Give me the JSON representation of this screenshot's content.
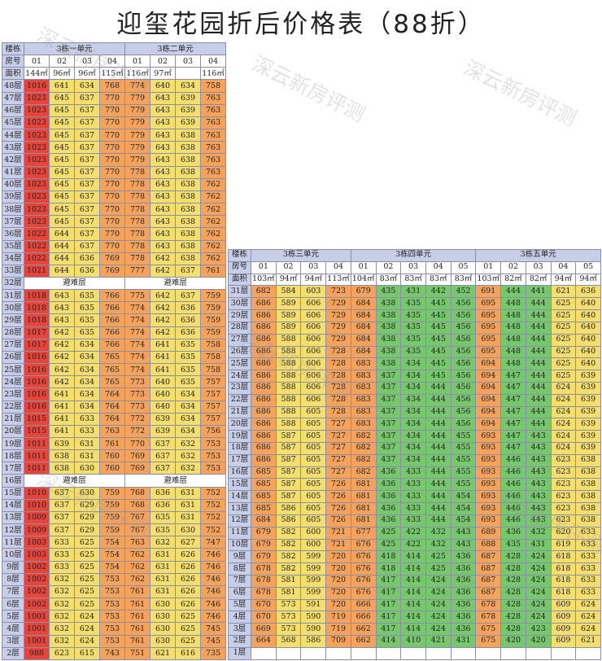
{
  "title": "迎玺花园折后价格表（88折）",
  "watermark": "深云新房评测",
  "colors": {
    "red": "#e9443a",
    "orange": "#f5a35c",
    "yellow": "#f4de6e",
    "green": "#77c86c",
    "label_bg": "#c8cee8"
  },
  "labels": {
    "building": "楼栋",
    "room": "房号",
    "area": "面积",
    "refuge": "避难层"
  },
  "left_table": {
    "units": [
      {
        "name": "3栋一单元",
        "rooms": [
          "01",
          "02",
          "03",
          "04"
        ],
        "areas": [
          "144㎡",
          "96㎡",
          "96㎡",
          "115㎡"
        ]
      },
      {
        "name": "3栋二单元",
        "rooms": [
          "01",
          "02",
          "03",
          "04"
        ],
        "areas": [
          "116㎡",
          "97㎡",
          "",
          "116㎡"
        ]
      }
    ],
    "rows": [
      {
        "floor": "48层",
        "v": [
          1016,
          641,
          634,
          768,
          774,
          640,
          634,
          758
        ]
      },
      {
        "floor": "47层",
        "v": [
          1023,
          645,
          637,
          770,
          779,
          643,
          639,
          763
        ]
      },
      {
        "floor": "46层",
        "v": [
          1023,
          645,
          637,
          770,
          779,
          643,
          639,
          763
        ]
      },
      {
        "floor": "45层",
        "v": [
          1023,
          645,
          637,
          770,
          779,
          643,
          639,
          763
        ]
      },
      {
        "floor": "44层",
        "v": [
          1023,
          645,
          637,
          770,
          779,
          643,
          638,
          763
        ]
      },
      {
        "floor": "43层",
        "v": [
          1023,
          645,
          637,
          770,
          779,
          643,
          638,
          763
        ]
      },
      {
        "floor": "42层",
        "v": [
          1023,
          645,
          637,
          770,
          779,
          643,
          638,
          763
        ]
      },
      {
        "floor": "41层",
        "v": [
          1023,
          645,
          637,
          770,
          778,
          643,
          638,
          763
        ]
      },
      {
        "floor": "40层",
        "v": [
          1023,
          645,
          637,
          770,
          778,
          643,
          638,
          762
        ]
      },
      {
        "floor": "39层",
        "v": [
          1023,
          645,
          637,
          770,
          778,
          643,
          638,
          762
        ]
      },
      {
        "floor": "38层",
        "v": [
          1023,
          645,
          637,
          770,
          778,
          643,
          638,
          762
        ]
      },
      {
        "floor": "37层",
        "v": [
          1023,
          645,
          637,
          770,
          778,
          643,
          638,
          762
        ]
      },
      {
        "floor": "36层",
        "v": [
          1022,
          644,
          637,
          770,
          778,
          643,
          638,
          762
        ]
      },
      {
        "floor": "35层",
        "v": [
          1022,
          644,
          637,
          770,
          778,
          643,
          638,
          762
        ]
      },
      {
        "floor": "34层",
        "v": [
          1022,
          644,
          636,
          769,
          778,
          642,
          638,
          762
        ]
      },
      {
        "floor": "33层",
        "v": [
          1021,
          644,
          636,
          769,
          777,
          642,
          637,
          761
        ]
      },
      {
        "floor": "32层",
        "refuge": true
      },
      {
        "floor": "31层",
        "v": [
          1018,
          643,
          635,
          766,
          775,
          642,
          637,
          759
        ]
      },
      {
        "floor": "30层",
        "v": [
          1018,
          643,
          635,
          766,
          774,
          642,
          636,
          759
        ]
      },
      {
        "floor": "29层",
        "v": [
          1018,
          643,
          635,
          766,
          774,
          642,
          636,
          759
        ]
      },
      {
        "floor": "28层",
        "v": [
          1017,
          642,
          635,
          766,
          774,
          642,
          636,
          759
        ]
      },
      {
        "floor": "27层",
        "v": [
          1017,
          642,
          634,
          766,
          774,
          641,
          635,
          758
        ]
      },
      {
        "floor": "26层",
        "v": [
          1016,
          642,
          634,
          765,
          774,
          641,
          635,
          758
        ]
      },
      {
        "floor": "25层",
        "v": [
          1016,
          642,
          634,
          765,
          774,
          641,
          635,
          758
        ]
      },
      {
        "floor": "24层",
        "v": [
          1016,
          642,
          634,
          765,
          773,
          640,
          635,
          757
        ]
      },
      {
        "floor": "23层",
        "v": [
          1016,
          641,
          634,
          764,
          773,
          640,
          634,
          757
        ]
      },
      {
        "floor": "22层",
        "v": [
          1016,
          641,
          634,
          764,
          773,
          640,
          634,
          757
        ]
      },
      {
        "floor": "21层",
        "v": [
          1015,
          641,
          633,
          764,
          772,
          639,
          634,
          757
        ]
      },
      {
        "floor": "20层",
        "v": [
          1015,
          641,
          633,
          763,
          772,
          639,
          634,
          756
        ]
      },
      {
        "floor": "19层",
        "v": [
          1011,
          639,
          631,
          761,
          770,
          637,
          632,
          753
        ]
      },
      {
        "floor": "18层",
        "v": [
          1011,
          638,
          631,
          760,
          769,
          637,
          632,
          753
        ]
      },
      {
        "floor": "17层",
        "v": [
          1011,
          638,
          630,
          760,
          769,
          637,
          632,
          753
        ]
      },
      {
        "floor": "16层",
        "refuge": true
      },
      {
        "floor": "15层",
        "v": [
          1010,
          637,
          630,
          759,
          768,
          636,
          631,
          752
        ]
      },
      {
        "floor": "14层",
        "v": [
          1010,
          637,
          629,
          759,
          768,
          636,
          631,
          752
        ]
      },
      {
        "floor": "13层",
        "v": [
          1009,
          637,
          629,
          759,
          767,
          635,
          631,
          752
        ]
      },
      {
        "floor": "12层",
        "v": [
          1009,
          637,
          629,
          759,
          767,
          635,
          630,
          752
        ]
      },
      {
        "floor": "11层",
        "v": [
          1003,
          633,
          625,
          754,
          763,
          632,
          627,
          747
        ]
      },
      {
        "floor": "10层",
        "v": [
          1003,
          633,
          625,
          754,
          762,
          631,
          626,
          746
        ]
      },
      {
        "floor": "9层",
        "v": [
          1002,
          633,
          625,
          754,
          762,
          631,
          626,
          746
        ]
      },
      {
        "floor": "8层",
        "v": [
          1002,
          632,
          625,
          753,
          762,
          631,
          626,
          746
        ]
      },
      {
        "floor": "7层",
        "v": [
          1002,
          632,
          625,
          753,
          761,
          631,
          626,
          746
        ]
      },
      {
        "floor": "6层",
        "v": [
          1002,
          632,
          625,
          753,
          761,
          630,
          626,
          746
        ]
      },
      {
        "floor": "5层",
        "v": [
          1001,
          632,
          624,
          753,
          761,
          630,
          625,
          746
        ]
      },
      {
        "floor": "4层",
        "v": [
          1001,
          632,
          624,
          753,
          761,
          630,
          625,
          745
        ]
      },
      {
        "floor": "3层",
        "v": [
          1001,
          632,
          624,
          753,
          761,
          630,
          625,
          745
        ]
      },
      {
        "floor": "2层",
        "v": [
          988,
          623,
          615,
          743,
          751,
          621,
          616,
          735
        ]
      }
    ]
  },
  "right_table": {
    "units": [
      {
        "name": "3栋三单元",
        "rooms": [
          "01",
          "02",
          "03",
          "04"
        ],
        "areas": [
          "103㎡",
          "94㎡",
          "94㎡",
          "113㎡"
        ]
      },
      {
        "name": "3栋四单元",
        "rooms": [
          "01",
          "02",
          "03",
          "04",
          "05"
        ],
        "areas": [
          "104㎡",
          "83㎡",
          "83㎡",
          "83㎡",
          "83㎡"
        ]
      },
      {
        "name": "3栋五单元",
        "rooms": [
          "01",
          "02",
          "03",
          "04",
          "05"
        ],
        "areas": [
          "103㎡",
          "82㎡",
          "82㎡",
          "94㎡",
          "94㎡"
        ]
      }
    ],
    "rows": [
      {
        "floor": "31层",
        "v": [
          682,
          584,
          603,
          723,
          679,
          435,
          431,
          442,
          452,
          691,
          444,
          441,
          621,
          636
        ]
      },
      {
        "floor": "30层",
        "v": [
          686,
          589,
          606,
          729,
          684,
          438,
          435,
          445,
          456,
          695,
          448,
          444,
          625,
          640
        ]
      },
      {
        "floor": "29层",
        "v": [
          686,
          589,
          606,
          729,
          684,
          438,
          435,
          445,
          456,
          695,
          448,
          444,
          625,
          640
        ]
      },
      {
        "floor": "28层",
        "v": [
          686,
          589,
          606,
          729,
          684,
          438,
          435,
          445,
          456,
          695,
          448,
          444,
          625,
          640
        ]
      },
      {
        "floor": "27层",
        "v": [
          686,
          588,
          606,
          729,
          684,
          438,
          435,
          445,
          456,
          695,
          448,
          444,
          625,
          640
        ]
      },
      {
        "floor": "26层",
        "v": [
          686,
          588,
          606,
          728,
          684,
          438,
          435,
          445,
          456,
          695,
          448,
          444,
          625,
          640
        ]
      },
      {
        "floor": "25层",
        "v": [
          686,
          588,
          606,
          728,
          683,
          438,
          434,
          445,
          456,
          694,
          448,
          444,
          625,
          640
        ]
      },
      {
        "floor": "24层",
        "v": [
          686,
          588,
          606,
          728,
          683,
          437,
          434,
          445,
          456,
          694,
          447,
          444,
          625,
          639
        ]
      },
      {
        "floor": "23层",
        "v": [
          686,
          588,
          606,
          728,
          683,
          437,
          434,
          444,
          456,
          694,
          447,
          444,
          624,
          639
        ]
      },
      {
        "floor": "22层",
        "v": [
          686,
          588,
          606,
          728,
          683,
          437,
          434,
          444,
          456,
          694,
          447,
          444,
          624,
          639
        ]
      },
      {
        "floor": "21层",
        "v": [
          686,
          588,
          605,
          728,
          683,
          437,
          434,
          444,
          456,
          694,
          447,
          444,
          624,
          639
        ]
      },
      {
        "floor": "20层",
        "v": [
          686,
          588,
          605,
          727,
          683,
          437,
          434,
          444,
          456,
          694,
          447,
          444,
          624,
          639
        ]
      },
      {
        "floor": "19层",
        "v": [
          686,
          587,
          605,
          727,
          682,
          437,
          434,
          444,
          455,
          693,
          447,
          443,
          624,
          639
        ]
      },
      {
        "floor": "18层",
        "v": [
          686,
          587,
          605,
          727,
          682,
          437,
          434,
          444,
          455,
          693,
          447,
          443,
          624,
          639
        ]
      },
      {
        "floor": "17层",
        "v": [
          686,
          587,
          605,
          727,
          682,
          437,
          434,
          444,
          455,
          693,
          446,
          443,
          623,
          638
        ]
      },
      {
        "floor": "16层",
        "v": [
          685,
          587,
          605,
          727,
          682,
          436,
          433,
          444,
          455,
          693,
          446,
          443,
          623,
          638
        ]
      },
      {
        "floor": "15层",
        "v": [
          685,
          587,
          605,
          726,
          681,
          436,
          433,
          444,
          455,
          693,
          446,
          443,
          623,
          638
        ]
      },
      {
        "floor": "14层",
        "v": [
          685,
          587,
          605,
          726,
          681,
          436,
          433,
          444,
          454,
          693,
          446,
          443,
          623,
          638
        ]
      },
      {
        "floor": "13层",
        "v": [
          685,
          586,
          605,
          726,
          681,
          436,
          433,
          444,
          454,
          693,
          446,
          443,
          623,
          638
        ]
      },
      {
        "floor": "12层",
        "v": [
          684,
          586,
          605,
          726,
          681,
          436,
          433,
          444,
          454,
          693,
          446,
          443,
          623,
          638
        ]
      },
      {
        "floor": "11层",
        "v": [
          679,
          582,
          600,
          721,
          677,
          425,
          422,
          432,
          443,
          689,
          436,
          432,
          620,
          633
        ]
      },
      {
        "floor": "10层",
        "v": [
          679,
          582,
          600,
          721,
          676,
          425,
          422,
          432,
          443,
          688,
          435,
          431,
          619,
          633
        ]
      },
      {
        "floor": "9层",
        "v": [
          679,
          582,
          599,
          720,
          676,
          418,
          414,
          425,
          436,
          687,
          428,
          424,
          618,
          633
        ]
      },
      {
        "floor": "8层",
        "v": [
          678,
          582,
          599,
          720,
          676,
          418,
          414,
          425,
          436,
          687,
          428,
          424,
          618,
          633
        ]
      },
      {
        "floor": "7层",
        "v": [
          678,
          581,
          599,
          720,
          676,
          417,
          414,
          424,
          436,
          687,
          428,
          424,
          618,
          633
        ]
      },
      {
        "floor": "6层",
        "v": [
          678,
          581,
          599,
          720,
          676,
          417,
          414,
          424,
          436,
          687,
          428,
          424,
          618,
          633
        ]
      },
      {
        "floor": "5层",
        "v": [
          670,
          573,
          591,
          720,
          666,
          417,
          414,
          424,
          436,
          678,
          428,
          424,
          609,
          624
        ]
      },
      {
        "floor": "4层",
        "v": [
          670,
          573,
          590,
          719,
          666,
          417,
          414,
          424,
          436,
          678,
          428,
          424,
          609,
          624
        ]
      },
      {
        "floor": "3层",
        "v": [
          669,
          573,
          590,
          719,
          662,
          417,
          414,
          424,
          436,
          675,
          428,
          423,
          609,
          624
        ]
      },
      {
        "floor": "2层",
        "v": [
          664,
          568,
          586,
          709,
          662,
          414,
          410,
          421,
          431,
          675,
          420,
          420,
          609,
          621
        ]
      },
      {
        "floor": "1层"
      }
    ]
  }
}
